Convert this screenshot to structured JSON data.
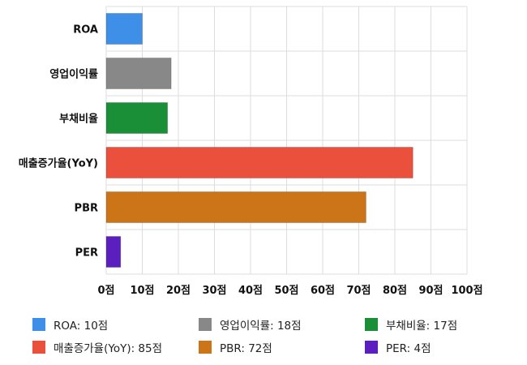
{
  "chart_data": {
    "type": "bar",
    "orientation": "horizontal",
    "categories": [
      "ROA",
      "영업이익률",
      "부채비율",
      "매출증가율(YoY)",
      "PBR",
      "PER"
    ],
    "values": [
      10,
      18,
      17,
      85,
      72,
      4
    ],
    "colors": [
      "#3d8fe8",
      "#888888",
      "#1a8f38",
      "#eb503c",
      "#cc7418",
      "#5b1fc0"
    ],
    "xlim": [
      0,
      100
    ],
    "xticks": [
      "0점",
      "10점",
      "20점",
      "30점",
      "40점",
      "50점",
      "60점",
      "70점",
      "80점",
      "90점",
      "100점"
    ],
    "grid": true,
    "legend": {
      "position": "bottom",
      "items": [
        "ROA: 10점",
        "영업이익률: 18점",
        "부채비율: 17점",
        "매출증가율(YoY): 85점",
        "PBR: 72점",
        "PER: 4점"
      ]
    },
    "title": "",
    "xlabel": "",
    "ylabel": ""
  }
}
